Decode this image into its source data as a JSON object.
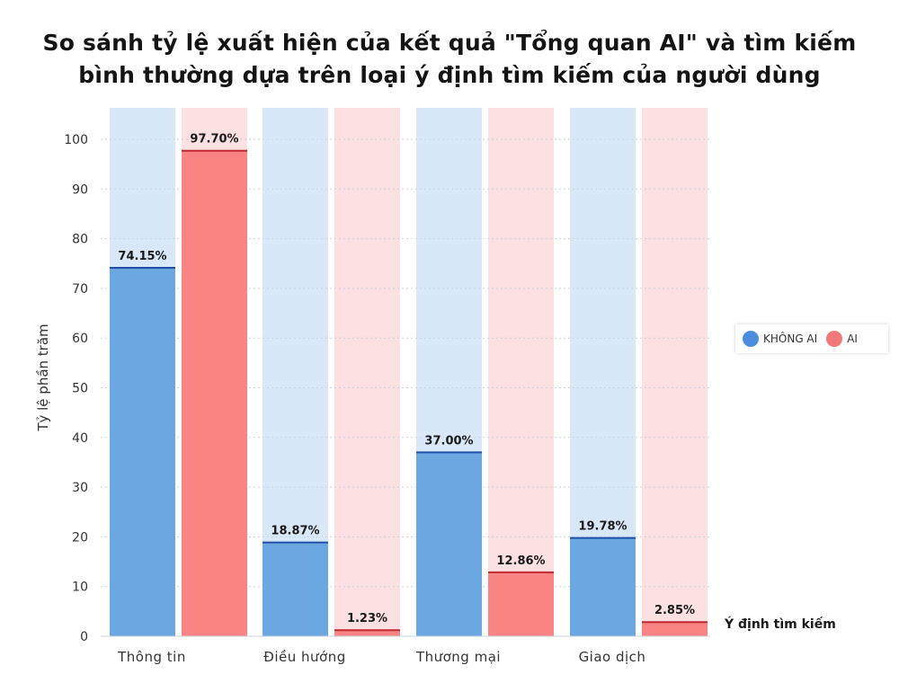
{
  "title_line1": "So sánh tỷ lệ xuất hiện của kết quả \"Tổng quan AI\" và tìm kiếm",
  "title_line2": "bình thường dựa trên loại ý định tìm kiếm của người dùng",
  "colors": {
    "bar_khong_ai": "#6ba7e0",
    "bar_ai": "#fa8484",
    "bg_khong_ai": "#d9e8f9",
    "bg_ai": "#fde0e2",
    "line_khong_ai": "#1f4fa8",
    "line_ai": "#c0282f",
    "legend_khong_ai": "#4d8edc",
    "legend_ai": "#f07a7a"
  },
  "chart_data": {
    "type": "bar",
    "title": "So sánh tỷ lệ xuất hiện của kết quả \"Tổng quan AI\" và tìm kiếm bình thường dựa trên loại ý định tìm kiếm của người dùng",
    "xlabel": "Ý định tìm kiếm",
    "ylabel": "Tỷ lệ phần trăm",
    "categories": [
      "Thông tin",
      "Điều hướng",
      "Thương mại",
      "Giao dịch"
    ],
    "series": [
      {
        "name": "KHÔNG AI",
        "values": [
          74.15,
          18.87,
          37.0,
          19.78
        ],
        "labels": [
          "74.15%",
          "18.87%",
          "37.00%",
          "19.78%"
        ]
      },
      {
        "name": "AI",
        "values": [
          97.7,
          1.23,
          12.86,
          2.85
        ],
        "labels": [
          "97.70%",
          "1.23%",
          "12.86%",
          "2.85%"
        ]
      }
    ],
    "ylim": [
      0,
      100
    ],
    "yticks": [
      0,
      10,
      20,
      30,
      40,
      50,
      60,
      70,
      80,
      90,
      100
    ],
    "grid": true,
    "legend": "right"
  }
}
